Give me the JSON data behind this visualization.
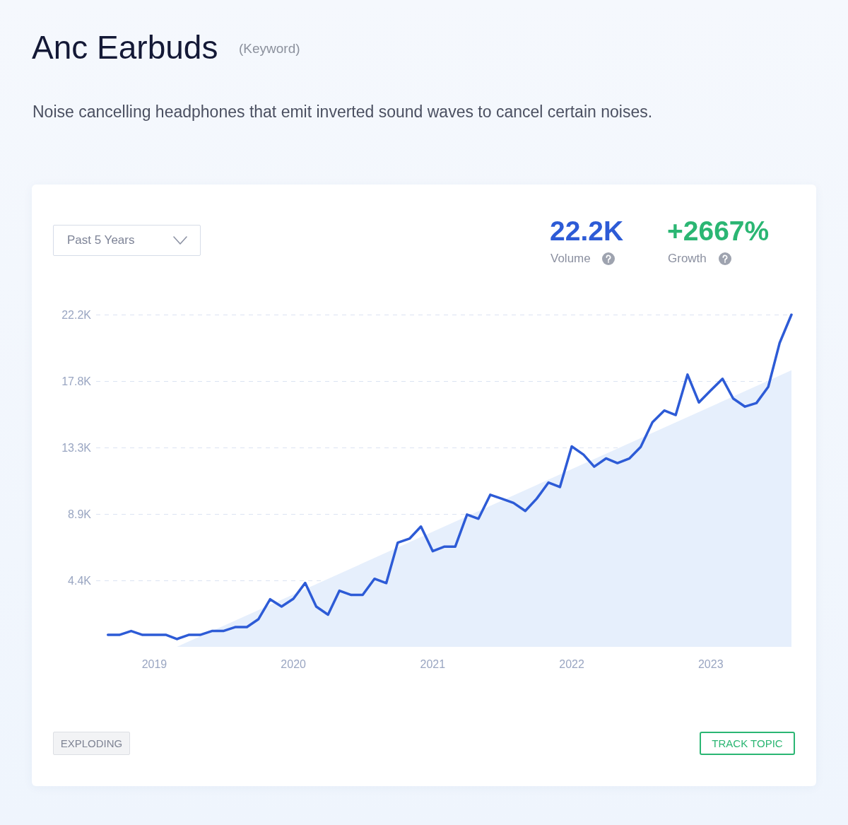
{
  "chart_data": {
    "type": "line",
    "title": "Anc Earbuds",
    "subtitle": "Noise cancelling headphones that emit inverted sound waves to cancel certain noises.",
    "annotations": [
      "(Keyword)",
      "Past 5 Years",
      "22.2K",
      "Volume",
      "+2667%",
      "Growth",
      "EXPLODING",
      "TRACK TOPIC"
    ],
    "x": [
      "2018-09",
      "2018-10",
      "2018-11",
      "2018-12",
      "2019-01",
      "2019-02",
      "2019-03",
      "2019-04",
      "2019-05",
      "2019-06",
      "2019-07",
      "2019-08",
      "2019-09",
      "2019-10",
      "2019-11",
      "2019-12",
      "2020-01",
      "2020-02",
      "2020-03",
      "2020-04",
      "2020-05",
      "2020-06",
      "2020-07",
      "2020-08",
      "2020-09",
      "2020-10",
      "2020-11",
      "2020-12",
      "2021-01",
      "2021-02",
      "2021-03",
      "2021-04",
      "2021-05",
      "2021-06",
      "2021-07",
      "2021-08",
      "2021-09",
      "2021-10",
      "2021-11",
      "2021-12",
      "2022-01",
      "2022-02",
      "2022-03",
      "2022-04",
      "2022-05",
      "2022-06",
      "2022-07",
      "2022-08",
      "2022-09",
      "2022-10",
      "2022-11",
      "2022-12",
      "2023-01",
      "2023-02",
      "2023-03",
      "2023-04",
      "2023-05",
      "2023-06",
      "2023-07",
      "2023-08"
    ],
    "series": [
      {
        "color": "#2d5bd6",
        "values": [
          800,
          800,
          1060,
          800,
          800,
          800,
          520,
          800,
          800,
          1060,
          1060,
          1320,
          1320,
          1840,
          3180,
          2690,
          3210,
          4270,
          2690,
          2150,
          3750,
          3470,
          3470,
          4550,
          4260,
          6960,
          7230,
          8040,
          6390,
          6700,
          6690,
          8840,
          8560,
          10160,
          9900,
          9620,
          9080,
          9900,
          10980,
          10680,
          13390,
          12840,
          12040,
          12590,
          12280,
          12580,
          13360,
          15010,
          15790,
          15490,
          18190,
          16330,
          17130,
          17910,
          16590,
          16050,
          16290,
          17370,
          20310,
          22200
        ]
      },
      {
        "type": "area",
        "x": [
          "2019-03",
          "2023-08"
        ],
        "color": "#e6effc",
        "values": [
          0,
          18480
        ]
      }
    ],
    "xlim": [
      "2018-08",
      "2023-08"
    ],
    "xticks": [
      "2019",
      "2020",
      "2021",
      "2022",
      "2023"
    ],
    "ylim": [
      0,
      22200
    ],
    "yticks": [
      {
        "value": 4440,
        "label": "4.4K"
      },
      {
        "value": 8880,
        "label": "8.9K"
      },
      {
        "value": 13320,
        "label": "13.3K"
      },
      {
        "value": 17760,
        "label": "17.8K"
      },
      {
        "value": 22200,
        "label": "22.2K"
      }
    ],
    "grid": "y",
    "marker": "none",
    "line_style": "solid"
  }
}
